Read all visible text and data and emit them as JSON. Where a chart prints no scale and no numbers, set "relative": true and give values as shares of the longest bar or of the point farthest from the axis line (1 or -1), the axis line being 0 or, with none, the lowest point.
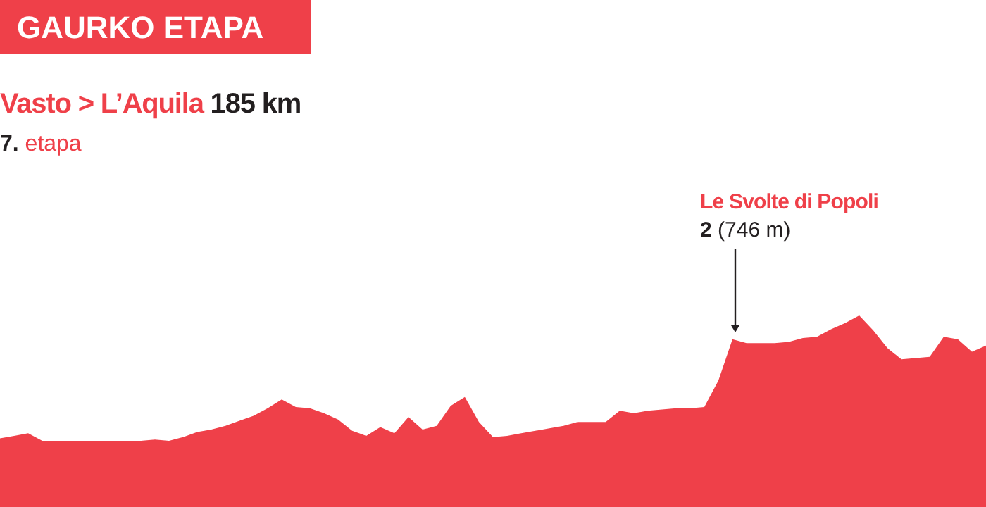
{
  "chart_data": {
    "type": "area",
    "title": "GAURKO ETAPA",
    "subtitle": "Vasto > L’Aquila 185 km",
    "relative": true,
    "color": "#ef4049",
    "categories": [
      null,
      null,
      null,
      null,
      null,
      null,
      null,
      null,
      null,
      null,
      null,
      null,
      null,
      null,
      null,
      null,
      null,
      null,
      null,
      null,
      null,
      null,
      null,
      null,
      null,
      null,
      null,
      null,
      null,
      null,
      null,
      null,
      null,
      null,
      null,
      null,
      null,
      null,
      null,
      null,
      null,
      null,
      null,
      null,
      null,
      null,
      null,
      null,
      null,
      null,
      null,
      null,
      null,
      null,
      null,
      null,
      null,
      null,
      null,
      null,
      null,
      null,
      null,
      null,
      null,
      null,
      null,
      null,
      null,
      null,
      null
    ],
    "values": [
      0.02,
      0.04,
      0.06,
      0,
      0,
      0,
      0,
      0,
      0,
      0,
      0,
      0.01,
      0,
      0.03,
      0.07,
      0.09,
      0.12,
      0.16,
      0.2,
      0.26,
      0.33,
      0.27,
      0.26,
      0.22,
      0.17,
      0.08,
      0.04,
      0.11,
      0.06,
      0.19,
      0.09,
      0.12,
      0.28,
      0.35,
      0.15,
      0.03,
      0.04,
      0.06,
      0.08,
      0.1,
      0.12,
      0.15,
      0.15,
      0.15,
      0.24,
      0.22,
      0.24,
      0.25,
      0.26,
      0.26,
      0.27,
      0.48,
      0.81,
      0.78,
      0.78,
      0.78,
      0.79,
      0.82,
      0.83,
      0.89,
      0.94,
      1,
      0.88,
      0.74,
      0.65,
      0.66,
      0.67,
      0.83,
      0.81,
      0.71,
      0.76
    ],
    "annotations": [
      "7. etapa",
      "Le Svolte di Popoli\n2 (746 m)"
    ]
  }
}
